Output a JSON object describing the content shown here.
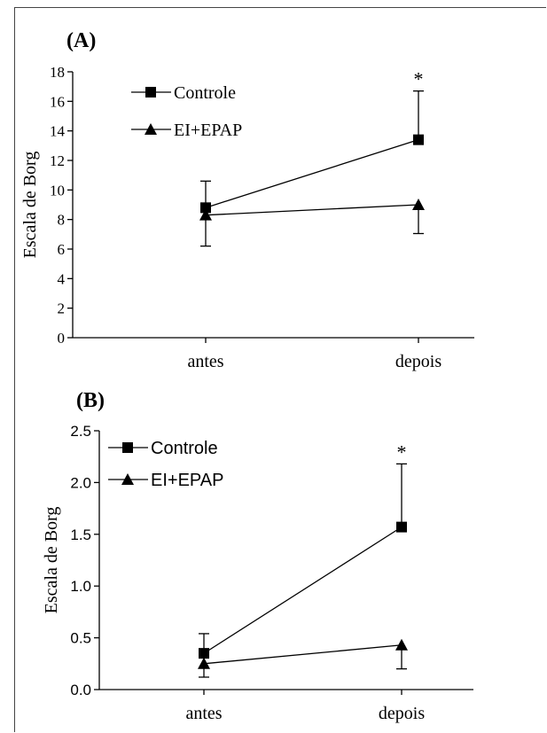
{
  "chart_data": [
    {
      "type": "line",
      "panel_label": "(A)",
      "ylabel": "Escala de Borg",
      "categories": [
        "antes",
        "depois"
      ],
      "ylim": [
        0,
        18
      ],
      "yticks": [
        "0",
        "2",
        "4",
        "6",
        "8",
        "10",
        "12",
        "14",
        "16",
        "18"
      ],
      "series": [
        {
          "name": "Controle",
          "marker": "square",
          "values": [
            8.8,
            13.4
          ],
          "errors": [
            1.8,
            3.3
          ],
          "error_direction": "up"
        },
        {
          "name": "EI+EPAP",
          "marker": "triangle",
          "values": [
            8.3,
            9.0
          ],
          "errors": [
            2.1,
            1.95
          ],
          "error_direction": "down"
        }
      ],
      "annotations": [
        {
          "text": "*",
          "category": "depois"
        }
      ],
      "legend_position": "top-left",
      "grid": false
    },
    {
      "type": "line",
      "panel_label": "(B)",
      "ylabel": "Escala de Borg",
      "categories": [
        "antes",
        "depois"
      ],
      "ylim": [
        0,
        2.5
      ],
      "yticks": [
        "0.0",
        "0.5",
        "1.0",
        "1.5",
        "2.0",
        "2.5"
      ],
      "series": [
        {
          "name": "Controle",
          "marker": "square",
          "values": [
            0.35,
            1.57
          ],
          "errors": [
            0.19,
            0.61
          ],
          "error_direction": "up"
        },
        {
          "name": "EI+EPAP",
          "marker": "triangle",
          "values": [
            0.25,
            0.43
          ],
          "errors": [
            0.13,
            0.23
          ],
          "error_direction": "down"
        }
      ],
      "annotations": [
        {
          "text": "*",
          "category": "depois"
        }
      ],
      "legend_position": "top-left",
      "grid": false
    }
  ]
}
